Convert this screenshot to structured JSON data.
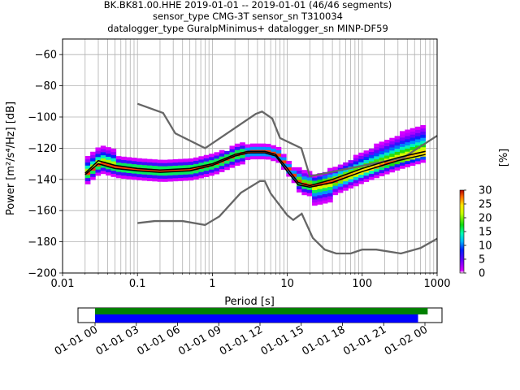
{
  "title_lines": [
    "BK.BK81.00.HHE   2019-01-01 -- 2019-01-01  (46/46 segments)",
    "sensor_type CMG-3T sensor_sn T310034",
    "datalogger_type GuralpMinimus+ datalogger_sn MINP-DF59"
  ],
  "chart_data": {
    "type": "heatmap",
    "xlabel": "Period [s]",
    "ylabel": "Power [m²/s⁴/Hz] [dB]",
    "xscale": "log",
    "xlim": [
      0.01,
      1000
    ],
    "ylim": [
      -200,
      -50
    ],
    "grid": true,
    "x_tick_labels": [
      "0.01",
      "0.1",
      "1",
      "10",
      "100",
      "1000"
    ],
    "y_ticks": [
      -200,
      -180,
      -160,
      -140,
      -120,
      -100,
      -80,
      -60
    ],
    "y_tick_labels": [
      "−200",
      "−180",
      "−160",
      "−140",
      "−120",
      "−100",
      "−80",
      "−60"
    ],
    "nhnm": {
      "color": "#666666",
      "points": [
        [
          0.1,
          -91.5
        ],
        [
          0.22,
          -97.4
        ],
        [
          0.32,
          -110.5
        ],
        [
          0.8,
          -120
        ],
        [
          3.8,
          -98
        ],
        [
          4.6,
          -96.5
        ],
        [
          6.3,
          -101
        ],
        [
          8.0,
          -113.5
        ],
        [
          15.4,
          -120
        ],
        [
          20,
          -138
        ],
        [
          354.8,
          -126
        ],
        [
          1000,
          -112
        ]
      ]
    },
    "nlnm": {
      "color": "#666666",
      "points": [
        [
          0.1,
          -168
        ],
        [
          0.17,
          -166.7
        ],
        [
          0.4,
          -166.7
        ],
        [
          0.8,
          -169.2
        ],
        [
          1.24,
          -163.7
        ],
        [
          2.4,
          -148.6
        ],
        [
          4.3,
          -141.1
        ],
        [
          5.0,
          -141.1
        ],
        [
          6.0,
          -149
        ],
        [
          10,
          -163
        ],
        [
          12,
          -166
        ],
        [
          15.6,
          -162
        ],
        [
          21.9,
          -177.5
        ],
        [
          31.6,
          -185
        ],
        [
          45,
          -187.5
        ],
        [
          70,
          -187.5
        ],
        [
          100,
          -185
        ],
        [
          154.5,
          -185
        ],
        [
          328.4,
          -187.5
        ],
        [
          600,
          -184
        ],
        [
          1000,
          -178
        ]
      ]
    },
    "mean_curve": {
      "color": "#000000",
      "points": [
        [
          0.02,
          -136
        ],
        [
          0.03,
          -128
        ],
        [
          0.05,
          -131
        ],
        [
          0.1,
          -133
        ],
        [
          0.2,
          -134
        ],
        [
          0.5,
          -133
        ],
        [
          1,
          -130
        ],
        [
          2,
          -124
        ],
        [
          3,
          -122
        ],
        [
          5,
          -122
        ],
        [
          7,
          -124
        ],
        [
          10,
          -133
        ],
        [
          14,
          -142
        ],
        [
          20,
          -144
        ],
        [
          40,
          -140
        ],
        [
          100,
          -133
        ],
        [
          300,
          -126
        ],
        [
          700,
          -122
        ]
      ]
    },
    "mode_curve": {
      "color": "#000000",
      "points": [
        [
          0.02,
          -137
        ],
        [
          0.03,
          -130
        ],
        [
          0.05,
          -133
        ],
        [
          0.1,
          -134.5
        ],
        [
          0.2,
          -135.5
        ],
        [
          0.5,
          -134.5
        ],
        [
          1,
          -131
        ],
        [
          2,
          -125
        ],
        [
          3,
          -123
        ],
        [
          5,
          -123
        ],
        [
          7,
          -125
        ],
        [
          10,
          -135
        ],
        [
          14,
          -143.5
        ],
        [
          20,
          -145
        ],
        [
          40,
          -142
        ],
        [
          100,
          -135
        ],
        [
          300,
          -128
        ],
        [
          700,
          -124
        ]
      ]
    },
    "colorbar": {
      "label": "[%]",
      "range": [
        0,
        30
      ],
      "ticks": [
        0,
        5,
        10,
        15,
        20,
        25,
        30
      ],
      "tick_labels": [
        "0",
        "5",
        "10",
        "15",
        "20",
        "25",
        "30"
      ]
    }
  },
  "coverage": {
    "tick_labels": [
      "01-01 00",
      "01-01 03",
      "01-01 06",
      "01-01 09",
      "01-01 12",
      "01-01 15",
      "01-01 18",
      "01-01 21",
      "01-02 00"
    ],
    "green_color": "#008000",
    "blue_color": "#0000ff",
    "green_bar_hours": [
      0,
      24.2
    ],
    "blue_bar_hours": [
      0,
      23.5
    ]
  }
}
